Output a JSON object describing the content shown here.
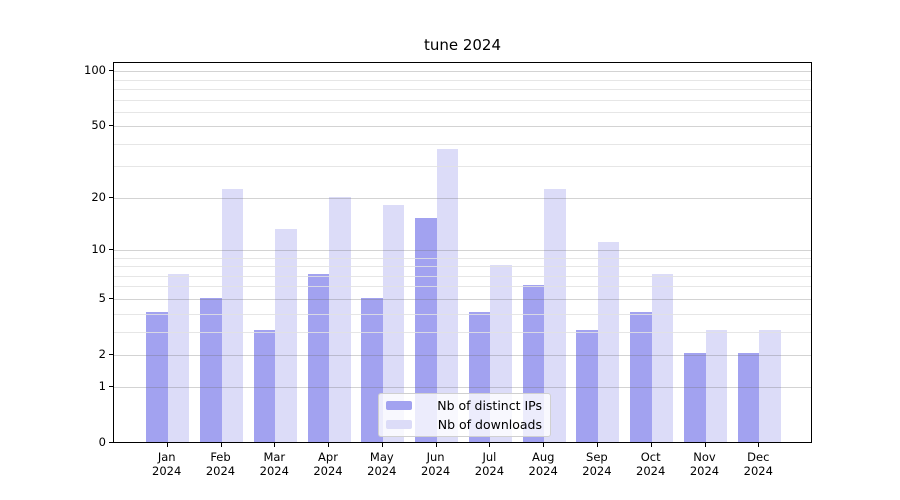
{
  "figure": {
    "title": "tune 2024"
  },
  "chart_data": {
    "type": "bar",
    "title": "tune 2024",
    "categories": [
      "Jan 2024",
      "Feb 2024",
      "Mar 2024",
      "Apr 2024",
      "May 2024",
      "Jun 2024",
      "Jul 2024",
      "Aug 2024",
      "Sep 2024",
      "Oct 2024",
      "Nov 2024",
      "Dec 2024"
    ],
    "series": [
      {
        "name": "Nb of distinct IPs",
        "color": "#a2a2f0",
        "values": [
          4,
          5,
          3,
          7,
          5,
          15,
          4,
          6,
          3,
          4,
          2,
          2
        ]
      },
      {
        "name": "Nb of downloads",
        "color": "#dcdcf8",
        "values": [
          7,
          22,
          13,
          20,
          18,
          37,
          8,
          22,
          11,
          7,
          3,
          3
        ]
      }
    ],
    "xlabel": "",
    "ylabel": "",
    "yscale": "log1p",
    "ylim": [
      0,
      113
    ],
    "yticks_major": [
      0,
      1,
      2,
      5,
      10,
      20,
      50,
      100
    ],
    "yticks_minor": [
      3,
      4,
      6,
      7,
      8,
      9,
      30,
      40,
      60,
      70,
      80,
      90
    ],
    "grid": true,
    "legend_position": "lower center"
  },
  "colors": {
    "spine": "#000000",
    "major_grid": "rgba(110,110,110,0.30)",
    "minor_grid": "rgba(226,226,226,0.85)",
    "background": "#ffffff"
  }
}
